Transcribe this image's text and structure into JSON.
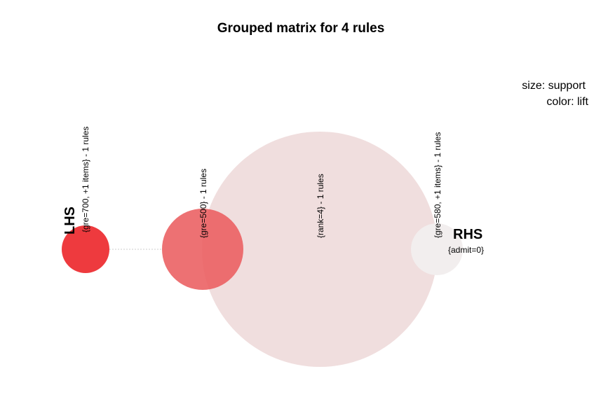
{
  "chart_data": {
    "type": "grouped-matrix",
    "title": "Grouped matrix for 4 rules",
    "lhs_label": "LHS",
    "rhs_label": "RHS",
    "legend": {
      "size": "size: support",
      "color": "color: lift"
    },
    "rhs_items": [
      "{admit=0}"
    ],
    "groups": [
      {
        "label": "{gre=700, +1 items} - 1 rules",
        "color": "#ee3a3e"
      },
      {
        "label": "{gre=500} - 1 rules",
        "color": "#eb5d60"
      },
      {
        "label": "{rank=4} - 1 rules",
        "color": "#efdcdc"
      },
      {
        "label": "{gre=580, +1 items} - 1 rules",
        "color": "#f2eeee"
      }
    ]
  }
}
